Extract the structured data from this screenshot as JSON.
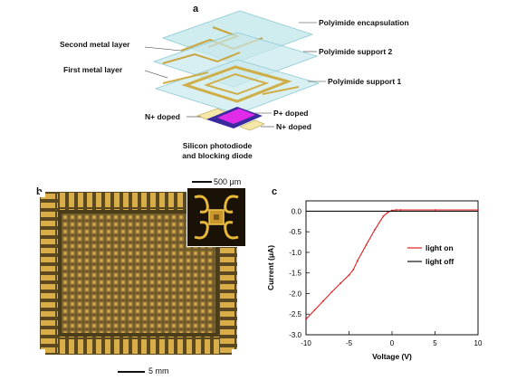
{
  "panels": {
    "a": "a",
    "b": "b",
    "c": "c"
  },
  "panel_a": {
    "layers_right": [
      "Polyimide encapsulation",
      "Polyimide support 2",
      "Polyimide support 1"
    ],
    "layers_left": [
      "Second metal layer",
      "First metal layer"
    ],
    "doping": {
      "n_left": "N+ doped",
      "p": "P+ doped",
      "n_right": "N+ doped"
    },
    "caption_line1": "Silicon photodiode",
    "caption_line2": "and blocking diode"
  },
  "panel_b": {
    "scale_small": "500 μm",
    "scale_large": "5 mm"
  },
  "chart_data": {
    "type": "line",
    "xlabel": "Voltage (V)",
    "ylabel": "Current  (μA)",
    "xlim": [
      -10,
      10
    ],
    "ylim": [
      -3.0,
      0.25
    ],
    "xticks": [
      -10,
      -5,
      0,
      5,
      10
    ],
    "yticks": [
      0.0,
      -0.5,
      -1.0,
      -1.5,
      -2.0,
      -2.5,
      -3.0
    ],
    "xtick_labels": [
      "-10",
      "-5",
      "0",
      "5",
      "10"
    ],
    "ytick_labels": [
      "0.0",
      "-0.5",
      "-1.0",
      "-1.5",
      "-2.0",
      "-2.5",
      "-3.0"
    ],
    "legend_position": "right",
    "series": [
      {
        "name": "light on",
        "color": "#e02020",
        "x": [
          -10,
          -9,
          -8,
          -7,
          -6,
          -5,
          -4.5,
          -4,
          -3,
          -2,
          -1,
          -0.5,
          0,
          0.5,
          1,
          5,
          10
        ],
        "y": [
          -2.62,
          -2.4,
          -2.18,
          -1.96,
          -1.75,
          -1.55,
          -1.42,
          -1.2,
          -0.82,
          -0.45,
          -0.12,
          -0.03,
          0.02,
          0.03,
          0.03,
          0.03,
          0.03
        ]
      },
      {
        "name": "light off",
        "color": "#111111",
        "x": [
          -10,
          -5,
          0,
          5,
          10
        ],
        "y": [
          0.0,
          0.0,
          0.0,
          0.0,
          0.0
        ]
      }
    ]
  }
}
